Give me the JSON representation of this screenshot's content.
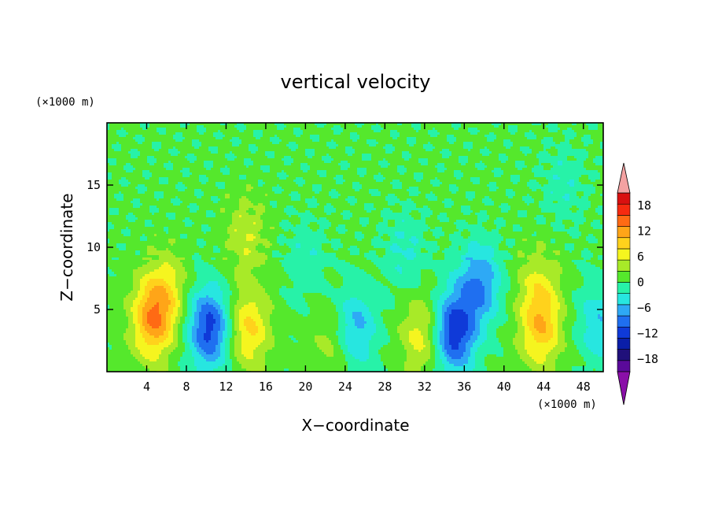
{
  "chart_data": {
    "type": "heatmap",
    "title": "vertical velocity",
    "xlabel": "X−coordinate",
    "ylabel": "Z−coordinate",
    "x_unit": "(×1000 m)",
    "y_unit": "(×1000 m)",
    "xlim": [
      0,
      50
    ],
    "ylim": [
      0,
      20
    ],
    "x_ticks": [
      4,
      8,
      12,
      16,
      20,
      24,
      28,
      32,
      36,
      40,
      44,
      48
    ],
    "y_ticks": [
      5,
      10,
      15
    ],
    "grid": false,
    "legend_position": "right",
    "colorbar": {
      "ticks": [
        18,
        12,
        6,
        0,
        -6,
        -12,
        -18
      ],
      "tick_labels": [
        "18",
        "12",
        "6",
        "0",
        "−6",
        "−12",
        "−18"
      ],
      "levels": [
        -21,
        -18,
        -15,
        -12,
        -9,
        -6,
        -3,
        0,
        3,
        6,
        9,
        12,
        15,
        18,
        21
      ],
      "colors": [
        "#5a0a9a",
        "#20107a",
        "#0a1ea8",
        "#0f3ad8",
        "#1f6ff0",
        "#2ea9f5",
        "#27e6e0",
        "#27f2a8",
        "#55e82c",
        "#a8ea28",
        "#f5f51f",
        "#ffd21c",
        "#ffa518",
        "#ff6a14",
        "#f62a10",
        "#d91010"
      ],
      "over_color": "#f4a2a2",
      "under_color": "#8a0fa8"
    },
    "features": [
      {
        "x": 4.6,
        "z": 4.2,
        "amplitude": 13
      },
      {
        "x": 6.0,
        "z": 6.5,
        "amplitude": 6
      },
      {
        "x": 10.3,
        "z": 3.5,
        "amplitude": -14
      },
      {
        "x": 14.3,
        "z": 3.5,
        "amplitude": 9
      },
      {
        "x": 14.0,
        "z": 11.0,
        "amplitude": 5
      },
      {
        "x": 25.0,
        "z": 3.5,
        "amplitude": -8
      },
      {
        "x": 22.8,
        "z": 2.5,
        "amplitude": 4
      },
      {
        "x": 31.7,
        "z": 3.0,
        "amplitude": 7
      },
      {
        "x": 35.0,
        "z": 3.2,
        "amplitude": -15
      },
      {
        "x": 37.5,
        "z": 7.0,
        "amplitude": -10
      },
      {
        "x": 43.7,
        "z": 3.5,
        "amplitude": 10
      },
      {
        "x": 43.5,
        "z": 7.0,
        "amplitude": 5
      },
      {
        "x": 49.5,
        "z": 4.0,
        "amplitude": -6
      },
      {
        "x": 20.0,
        "z": 9.0,
        "amplitude": -3
      },
      {
        "x": 30.0,
        "z": 9.5,
        "amplitude": -4
      },
      {
        "x": 46.0,
        "z": 15.0,
        "amplitude": -3
      }
    ]
  }
}
